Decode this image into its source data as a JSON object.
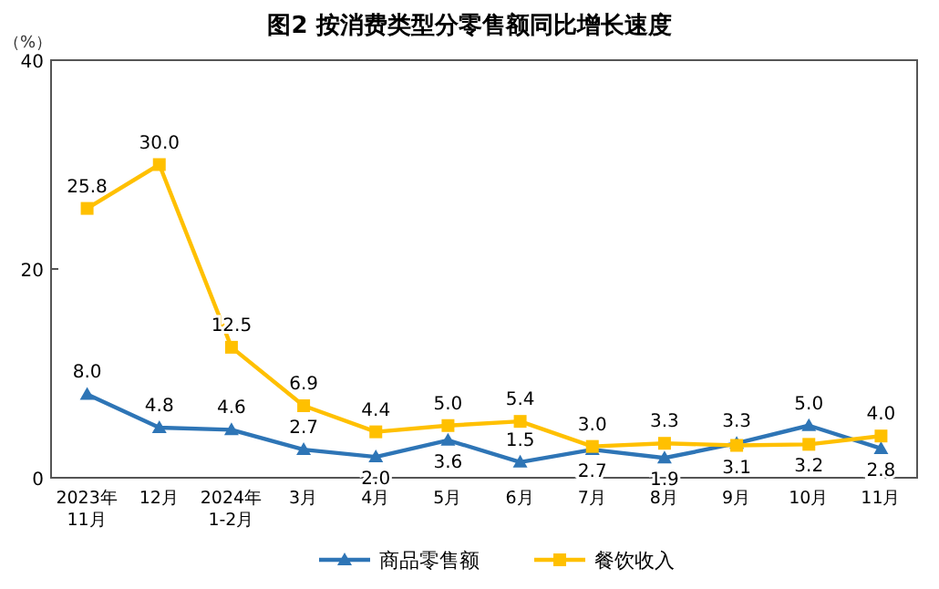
{
  "chart_data": {
    "type": "line",
    "title": "图2  按消费类型分零售额同比增长速度",
    "ylabel": "（%）",
    "categories": [
      "2023年\n11月",
      "12月",
      "2024年\n1-2月",
      "3月",
      "4月",
      "5月",
      "6月",
      "7月",
      "8月",
      "9月",
      "10月",
      "11月"
    ],
    "series": [
      {
        "name": "商品零售额",
        "color": "#2e75b6",
        "marker": "triangle",
        "values": [
          8.0,
          4.8,
          4.6,
          2.7,
          2.0,
          3.6,
          1.5,
          2.7,
          1.9,
          3.3,
          5.0,
          2.8
        ],
        "value_labels": [
          "8.0",
          "4.8",
          "4.6",
          "2.7",
          "2.0",
          "3.6",
          "1.5",
          "2.7",
          "1.9",
          "3.3",
          "5.0",
          "2.8"
        ]
      },
      {
        "name": "餐饮收入",
        "color": "#ffc000",
        "marker": "square",
        "values": [
          25.8,
          30.0,
          12.5,
          6.9,
          4.4,
          5.0,
          5.4,
          3.0,
          3.3,
          3.1,
          3.2,
          4.0
        ],
        "value_labels": [
          "25.8",
          "30.0",
          "12.5",
          "6.9",
          "4.4",
          "5.0",
          "5.4",
          "3.0",
          "3.3",
          "3.1",
          "3.2",
          "4.0"
        ]
      }
    ],
    "ylim": [
      0,
      40
    ],
    "yticks": [
      0,
      20,
      40
    ],
    "legend": "bottom",
    "line_style": "solid"
  }
}
